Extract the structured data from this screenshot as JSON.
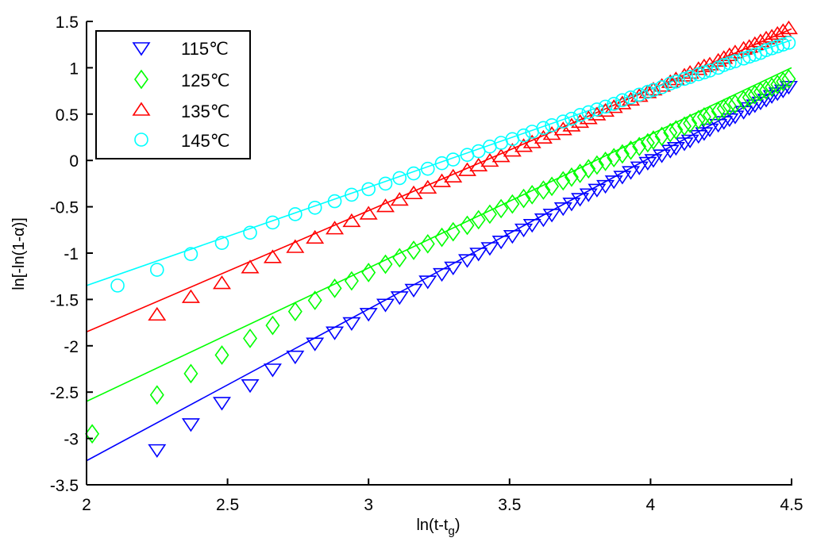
{
  "chart_data": {
    "type": "scatter",
    "title": "",
    "xlabel": "ln(t-t",
    "xlabel_sub": "g",
    "xlabel_close": ")",
    "ylabel": "ln[-ln(1-α)]",
    "xlim": [
      2,
      4.5
    ],
    "ylim": [
      -3.5,
      1.5
    ],
    "xticks": [
      "2",
      "2.5",
      "3",
      "3.5",
      "4",
      "4.5"
    ],
    "xtick_values": [
      2,
      2.5,
      3,
      3.5,
      4,
      4.5
    ],
    "yticks": [
      "-3.5",
      "-3",
      "-2.5",
      "-2",
      "-1.5",
      "-1",
      "-0.5",
      "0",
      "0.5",
      "1",
      "1.5"
    ],
    "ytick_values": [
      -3.5,
      -3,
      -2.5,
      -2,
      -1.5,
      -1,
      -0.5,
      0,
      0.5,
      1,
      1.5
    ],
    "grid": false,
    "legend_position": "top-left",
    "series": [
      {
        "name": "115℃",
        "color": "#0000ff",
        "marker": "triangle-down",
        "fit": [
          [
            2,
            -3.24
          ],
          [
            4.5,
            0.85
          ]
        ],
        "x": [
          2.25,
          2.37,
          2.48,
          2.58,
          2.66,
          2.74,
          2.81,
          2.88,
          2.94,
          3.0,
          3.06,
          3.11,
          3.16,
          3.21,
          3.26,
          3.3,
          3.35,
          3.39,
          3.43,
          3.47,
          3.51,
          3.55,
          3.58,
          3.62,
          3.65,
          3.69,
          3.72,
          3.75,
          3.78,
          3.81,
          3.84,
          3.87,
          3.9,
          3.93,
          3.96,
          3.99,
          4.01,
          4.04,
          4.07,
          4.09,
          4.12,
          4.14,
          4.17,
          4.19,
          4.21,
          4.24,
          4.26,
          4.28,
          4.3,
          4.33,
          4.35,
          4.37,
          4.39,
          4.41,
          4.43,
          4.45,
          4.47,
          4.49
        ],
        "y": [
          -3.12,
          -2.84,
          -2.61,
          -2.42,
          -2.25,
          -2.11,
          -1.97,
          -1.85,
          -1.75,
          -1.65,
          -1.55,
          -1.47,
          -1.39,
          -1.3,
          -1.22,
          -1.15,
          -1.07,
          -1.0,
          -0.94,
          -0.87,
          -0.81,
          -0.74,
          -0.69,
          -0.63,
          -0.58,
          -0.51,
          -0.46,
          -0.41,
          -0.36,
          -0.31,
          -0.27,
          -0.22,
          -0.17,
          -0.12,
          -0.07,
          -0.02,
          0.01,
          0.06,
          0.11,
          0.14,
          0.19,
          0.22,
          0.27,
          0.3,
          0.34,
          0.39,
          0.42,
          0.45,
          0.48,
          0.53,
          0.57,
          0.6,
          0.63,
          0.66,
          0.7,
          0.73,
          0.76,
          0.8
        ]
      },
      {
        "name": "125℃",
        "color": "#00ff00",
        "marker": "diamond",
        "fit": [
          [
            2,
            -2.6
          ],
          [
            4.5,
            1.0
          ]
        ],
        "x": [
          2.02,
          2.25,
          2.37,
          2.48,
          2.58,
          2.66,
          2.74,
          2.81,
          2.88,
          2.94,
          3.0,
          3.06,
          3.11,
          3.16,
          3.21,
          3.26,
          3.3,
          3.35,
          3.39,
          3.43,
          3.47,
          3.51,
          3.55,
          3.58,
          3.62,
          3.65,
          3.69,
          3.72,
          3.75,
          3.78,
          3.81,
          3.84,
          3.87,
          3.9,
          3.93,
          3.96,
          3.99,
          4.01,
          4.04,
          4.07,
          4.09,
          4.12,
          4.14,
          4.17,
          4.19,
          4.21,
          4.24,
          4.26,
          4.28,
          4.3,
          4.33,
          4.35,
          4.37,
          4.39,
          4.41,
          4.43,
          4.45,
          4.47,
          4.49
        ],
        "y": [
          -2.95,
          -2.53,
          -2.3,
          -2.1,
          -1.92,
          -1.78,
          -1.63,
          -1.51,
          -1.38,
          -1.3,
          -1.21,
          -1.12,
          -1.05,
          -0.97,
          -0.9,
          -0.83,
          -0.77,
          -0.7,
          -0.64,
          -0.58,
          -0.52,
          -0.47,
          -0.41,
          -0.37,
          -0.32,
          -0.28,
          -0.22,
          -0.18,
          -0.14,
          -0.09,
          -0.05,
          -0.01,
          0.03,
          0.07,
          0.11,
          0.15,
          0.19,
          0.22,
          0.26,
          0.3,
          0.33,
          0.37,
          0.4,
          0.44,
          0.47,
          0.49,
          0.53,
          0.56,
          0.59,
          0.61,
          0.65,
          0.68,
          0.71,
          0.74,
          0.76,
          0.79,
          0.82,
          0.85,
          0.88
        ]
      },
      {
        "name": "135℃",
        "color": "#ff0000",
        "marker": "triangle-up",
        "fit": [
          [
            2,
            -1.85
          ],
          [
            4.5,
            1.42
          ]
        ],
        "x": [
          2.25,
          2.37,
          2.48,
          2.58,
          2.66,
          2.74,
          2.81,
          2.88,
          2.94,
          3.0,
          3.06,
          3.11,
          3.16,
          3.21,
          3.26,
          3.3,
          3.35,
          3.39,
          3.43,
          3.47,
          3.51,
          3.55,
          3.58,
          3.62,
          3.65,
          3.69,
          3.72,
          3.75,
          3.78,
          3.81,
          3.84,
          3.87,
          3.9,
          3.93,
          3.96,
          3.99,
          4.01,
          4.04,
          4.07,
          4.09,
          4.12,
          4.14,
          4.17,
          4.19,
          4.21,
          4.24,
          4.26,
          4.28,
          4.3,
          4.33,
          4.35,
          4.37,
          4.39,
          4.41,
          4.43,
          4.45,
          4.47,
          4.49
        ],
        "y": [
          -1.67,
          -1.48,
          -1.33,
          -1.16,
          -1.05,
          -0.94,
          -0.84,
          -0.74,
          -0.66,
          -0.58,
          -0.5,
          -0.43,
          -0.36,
          -0.3,
          -0.23,
          -0.18,
          -0.11,
          -0.06,
          -0.01,
          0.04,
          0.1,
          0.15,
          0.19,
          0.24,
          0.28,
          0.33,
          0.37,
          0.41,
          0.45,
          0.49,
          0.53,
          0.57,
          0.61,
          0.65,
          0.69,
          0.73,
          0.76,
          0.8,
          0.84,
          0.87,
          0.91,
          0.94,
          0.98,
          1.01,
          1.03,
          1.07,
          1.1,
          1.13,
          1.16,
          1.2,
          1.22,
          1.25,
          1.28,
          1.31,
          1.33,
          1.36,
          1.39,
          1.42
        ]
      },
      {
        "name": "145℃",
        "color": "#00ffff",
        "marker": "circle",
        "fit": [
          [
            2,
            -1.35
          ],
          [
            4.5,
            1.3
          ]
        ],
        "x": [
          2.11,
          2.25,
          2.37,
          2.48,
          2.58,
          2.66,
          2.74,
          2.81,
          2.88,
          2.94,
          3.0,
          3.06,
          3.11,
          3.16,
          3.21,
          3.26,
          3.3,
          3.35,
          3.39,
          3.43,
          3.47,
          3.51,
          3.55,
          3.58,
          3.62,
          3.65,
          3.69,
          3.72,
          3.75,
          3.78,
          3.81,
          3.84,
          3.87,
          3.9,
          3.93,
          3.96,
          3.99,
          4.01,
          4.04,
          4.07,
          4.09,
          4.12,
          4.14,
          4.17,
          4.19,
          4.21,
          4.24,
          4.26,
          4.28,
          4.3,
          4.33,
          4.35,
          4.37,
          4.39,
          4.41,
          4.43,
          4.45,
          4.47,
          4.49
        ],
        "y": [
          -1.35,
          -1.18,
          -1.01,
          -0.89,
          -0.78,
          -0.67,
          -0.58,
          -0.51,
          -0.44,
          -0.37,
          -0.31,
          -0.25,
          -0.19,
          -0.14,
          -0.09,
          -0.03,
          0.01,
          0.06,
          0.1,
          0.15,
          0.19,
          0.23,
          0.27,
          0.31,
          0.35,
          0.38,
          0.42,
          0.45,
          0.49,
          0.52,
          0.55,
          0.58,
          0.61,
          0.65,
          0.68,
          0.71,
          0.74,
          0.76,
          0.79,
          0.83,
          0.85,
          0.88,
          0.9,
          0.93,
          0.95,
          0.97,
          1.0,
          1.03,
          1.05,
          1.07,
          1.1,
          1.12,
          1.14,
          1.16,
          1.19,
          1.21,
          1.23,
          1.25,
          1.27
        ]
      }
    ]
  }
}
